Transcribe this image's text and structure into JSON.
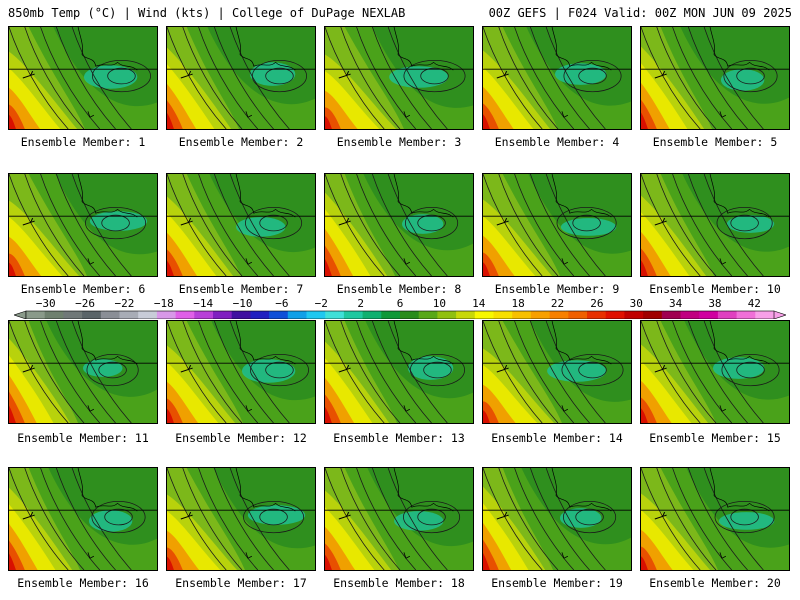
{
  "header": {
    "left_title": "850mb Temp (°C) | Wind (kts) | College of DuPage NEXLAB",
    "right_title": "00Z GEFS | F024 Valid: 00Z MON JUN 09 2025"
  },
  "caption_prefix": "Ensemble Member: ",
  "members": [
    {
      "number": 1,
      "label": "Ensemble Member: 1"
    },
    {
      "number": 2,
      "label": "Ensemble Member: 2"
    },
    {
      "number": 3,
      "label": "Ensemble Member: 3"
    },
    {
      "number": 4,
      "label": "Ensemble Member: 4"
    },
    {
      "number": 5,
      "label": "Ensemble Member: 5"
    },
    {
      "number": 6,
      "label": "Ensemble Member: 6"
    },
    {
      "number": 7,
      "label": "Ensemble Member: 7"
    },
    {
      "number": 8,
      "label": "Ensemble Member: 8"
    },
    {
      "number": 9,
      "label": "Ensemble Member: 9"
    },
    {
      "number": 10,
      "label": "Ensemble Member: 10"
    },
    {
      "number": 11,
      "label": "Ensemble Member: 11"
    },
    {
      "number": 12,
      "label": "Ensemble Member: 12"
    },
    {
      "number": 13,
      "label": "Ensemble Member: 13"
    },
    {
      "number": 14,
      "label": "Ensemble Member: 14"
    },
    {
      "number": 15,
      "label": "Ensemble Member: 15"
    },
    {
      "number": 16,
      "label": "Ensemble Member: 16"
    },
    {
      "number": 17,
      "label": "Ensemble Member: 17"
    },
    {
      "number": 18,
      "label": "Ensemble Member: 18"
    },
    {
      "number": 19,
      "label": "Ensemble Member: 19"
    },
    {
      "number": 20,
      "label": "Ensemble Member: 20"
    }
  ],
  "colorbar": {
    "labels": [
      "−30",
      "−26",
      "−22",
      "−18",
      "−14",
      "−10",
      "−6",
      "−2",
      "2",
      "6",
      "10",
      "14",
      "18",
      "22",
      "26",
      "30",
      "34",
      "38",
      "42"
    ],
    "label_values": [
      -30,
      -26,
      -22,
      -18,
      -14,
      -10,
      -6,
      -2,
      2,
      6,
      10,
      14,
      18,
      22,
      26,
      30,
      34,
      38,
      42
    ],
    "min": -32,
    "max": 44,
    "step": 2,
    "colors": [
      "#8a9a8a",
      "#6e806e",
      "#707878",
      "#5a6468",
      "#8a8e96",
      "#a8acb6",
      "#c8ccd8",
      "#d898e8",
      "#e060e8",
      "#b840d8",
      "#8020c0",
      "#4010a0",
      "#2020c0",
      "#1050d8",
      "#10a0e8",
      "#20c8f0",
      "#40e0d8",
      "#20c8a0",
      "#10b070",
      "#109838",
      "#2a8c1a",
      "#58a818",
      "#90c010",
      "#c8d808",
      "#f8f800",
      "#f8e000",
      "#f8c000",
      "#f8a000",
      "#f88000",
      "#f06000",
      "#e83000",
      "#e01000",
      "#c00000",
      "#a00000",
      "#a00050",
      "#c00080",
      "#d000a0",
      "#e040c0",
      "#f070d8",
      "#f8a0e8"
    ]
  },
  "map_fill_colors": {
    "dark_green": "#2f8f1e",
    "green": "#4aa21a",
    "light_green": "#7cb81a",
    "yellow_green": "#b8d20c",
    "yellow": "#e8e800",
    "orange": "#f0a000",
    "red_orange": "#e85000",
    "red": "#d81000",
    "teal": "#20c090"
  }
}
